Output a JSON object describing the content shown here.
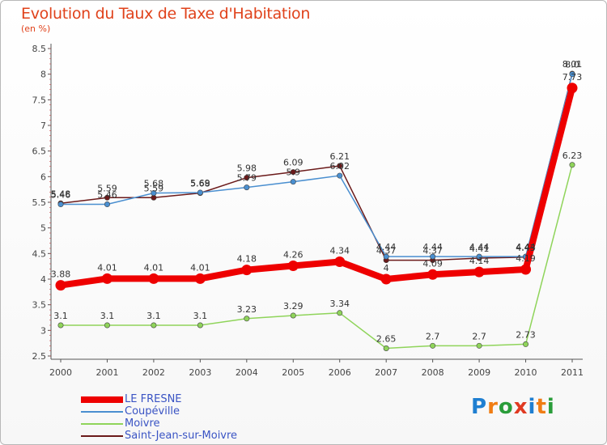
{
  "title": "Evolution du Taux de Taxe d'Habitation",
  "unit": "(en %)",
  "brand": {
    "text": "Proxiti",
    "letters": [
      {
        "ch": "P",
        "color": "#1f7fd1"
      },
      {
        "ch": "r",
        "color": "#f07d14"
      },
      {
        "ch": "o",
        "color": "#2a9d3a"
      },
      {
        "ch": "x",
        "color": "#e03a22"
      },
      {
        "ch": "i",
        "color": "#1f7fd1"
      },
      {
        "ch": "t",
        "color": "#f07d14"
      },
      {
        "ch": "i",
        "color": "#2a9d3a"
      }
    ]
  },
  "chart_data": {
    "type": "line",
    "title": "Evolution du Taux de Taxe d'Habitation",
    "ylabel": "(en %)",
    "xlabel": "",
    "x": [
      "2000",
      "2001",
      "2002",
      "2003",
      "2004",
      "2005",
      "2006",
      "2007",
      "2008",
      "2009",
      "2010",
      "2011"
    ],
    "ylim": [
      2.5,
      8.5
    ],
    "yticks": [
      "2.5",
      "3",
      "3.5",
      "4",
      "4.5",
      "5",
      "5.5",
      "6",
      "6.5",
      "7",
      "7.5",
      "8",
      "8.5"
    ],
    "grid": false,
    "legend": "bottom-left",
    "series": [
      {
        "name": "Saint-Jean-sur-Moivre",
        "color": "#6b1a1a",
        "values": [
          5.48,
          5.59,
          5.59,
          5.68,
          5.98,
          6.09,
          6.21,
          4.37,
          4.37,
          4.41,
          4.43,
          8.01
        ],
        "labels": [
          "5.48",
          "5.59",
          "5.59",
          "5.68",
          "5.98",
          "6.09",
          "6.21",
          "4.37",
          "4.37",
          "4.41",
          "4.43",
          "8.01"
        ]
      },
      {
        "name": "Coupéville",
        "color": "#4a8fd0",
        "values": [
          5.46,
          5.46,
          5.68,
          5.69,
          5.79,
          5.9,
          6.02,
          4.44,
          4.44,
          4.44,
          4.44,
          8.0
        ],
        "labels": [
          "5.46",
          "5.46",
          "5.68",
          "5.69",
          "5.79",
          "5.9",
          "6.02",
          "4.44",
          "4.44",
          "4.44",
          "4.44",
          "8.0"
        ]
      },
      {
        "name": "Moivre",
        "color": "#8fd45a",
        "values": [
          3.1,
          3.1,
          3.1,
          3.1,
          3.23,
          3.29,
          3.34,
          2.65,
          2.7,
          2.7,
          2.73,
          6.23
        ],
        "labels": [
          "3.1",
          "3.1",
          "3.1",
          "3.1",
          "3.23",
          "3.29",
          "3.34",
          "2.65",
          "2.7",
          "2.7",
          "2.73",
          "6.23"
        ]
      },
      {
        "name": "LE FRESNE",
        "color": "#ee0000",
        "values": [
          3.88,
          4.01,
          4.01,
          4.01,
          4.18,
          4.26,
          4.34,
          4.0,
          4.09,
          4.14,
          4.19,
          7.73
        ],
        "labels": [
          "3.88",
          "4.01",
          "4.01",
          "4.01",
          "4.18",
          "4.26",
          "4.34",
          "4",
          "4.09",
          "4.14",
          "4.19",
          "7.73"
        ]
      }
    ],
    "legend_order": [
      "LE FRESNE",
      "Coupéville",
      "Moivre",
      "Saint-Jean-sur-Moivre"
    ]
  }
}
